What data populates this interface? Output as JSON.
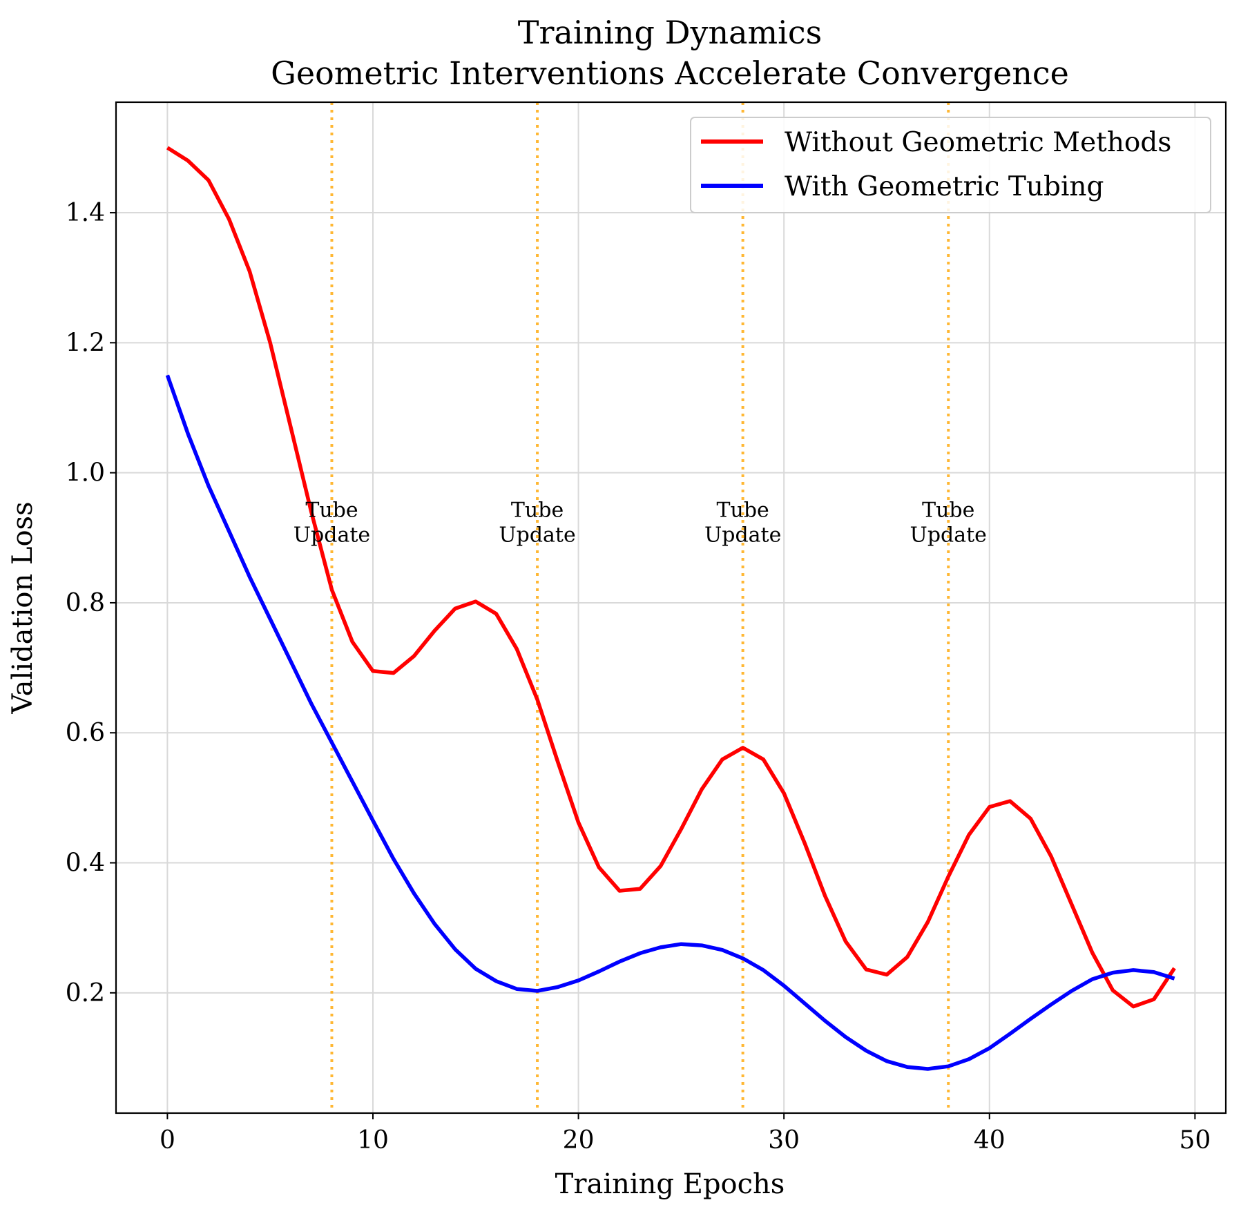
{
  "chart_data": {
    "type": "line",
    "title": "Training Dynamics",
    "subtitle": "Geometric Interventions Accelerate Convergence",
    "xlabel": "Training Epochs",
    "ylabel": "Validation Loss",
    "xlim": [
      -2.5,
      51.5
    ],
    "ylim": [
      0.015,
      1.57
    ],
    "xticks": [
      0,
      10,
      20,
      30,
      40,
      50
    ],
    "yticks": [
      0.2,
      0.4,
      0.6,
      0.8,
      1.0,
      1.2,
      1.4
    ],
    "xtick_labels": [
      "0",
      "10",
      "20",
      "30",
      "40",
      "50"
    ],
    "ytick_labels": [
      "0.2",
      "0.4",
      "0.6",
      "0.8",
      "1.0",
      "1.2",
      "1.4"
    ],
    "grid": true,
    "legend_position": "top-right",
    "x": [
      0,
      1,
      2,
      3,
      4,
      5,
      6,
      7,
      8,
      9,
      10,
      11,
      12,
      13,
      14,
      15,
      16,
      17,
      18,
      19,
      20,
      21,
      22,
      23,
      24,
      25,
      26,
      27,
      28,
      29,
      30,
      31,
      32,
      33,
      34,
      35,
      36,
      37,
      38,
      39,
      40,
      41,
      42,
      43,
      44,
      45,
      46,
      47,
      48,
      49
    ],
    "series": [
      {
        "name": "Without Geometric Methods",
        "color": "#ff0000",
        "values": [
          1.5,
          1.48,
          1.45,
          1.39,
          1.31,
          1.2,
          1.07,
          0.94,
          0.82,
          0.74,
          0.695,
          0.692,
          0.718,
          0.757,
          0.791,
          0.802,
          0.783,
          0.729,
          0.651,
          0.555,
          0.462,
          0.393,
          0.357,
          0.36,
          0.395,
          0.452,
          0.513,
          0.559,
          0.577,
          0.559,
          0.507,
          0.431,
          0.349,
          0.279,
          0.236,
          0.228,
          0.255,
          0.309,
          0.379,
          0.443,
          0.486,
          0.495,
          0.468,
          0.41,
          0.336,
          0.262,
          0.204,
          0.179,
          0.19,
          0.238
        ]
      },
      {
        "name": "With Geometric Tubing",
        "color": "#0000ff",
        "values": [
          1.15,
          1.06,
          0.98,
          0.91,
          0.84,
          0.775,
          0.71,
          0.645,
          0.585,
          0.525,
          0.465,
          0.406,
          0.353,
          0.306,
          0.267,
          0.237,
          0.218,
          0.206,
          0.203,
          0.209,
          0.219,
          0.233,
          0.248,
          0.261,
          0.27,
          0.275,
          0.273,
          0.266,
          0.253,
          0.235,
          0.211,
          0.184,
          0.157,
          0.132,
          0.111,
          0.095,
          0.086,
          0.083,
          0.087,
          0.098,
          0.115,
          0.137,
          0.16,
          0.182,
          0.203,
          0.221,
          0.231,
          0.235,
          0.232,
          0.222
        ]
      }
    ],
    "annotations": [
      {
        "x": 8,
        "lines": [
          "Tube",
          "Update"
        ],
        "y": 0.93,
        "color": "#ffa500",
        "style": "dotted"
      },
      {
        "x": 18,
        "lines": [
          "Tube",
          "Update"
        ],
        "y": 0.93,
        "color": "#ffa500",
        "style": "dotted"
      },
      {
        "x": 28,
        "lines": [
          "Tube",
          "Update"
        ],
        "y": 0.93,
        "color": "#ffa500",
        "style": "dotted"
      },
      {
        "x": 38,
        "lines": [
          "Tube",
          "Update"
        ],
        "y": 0.93,
        "color": "#ffa500",
        "style": "dotted"
      }
    ]
  }
}
